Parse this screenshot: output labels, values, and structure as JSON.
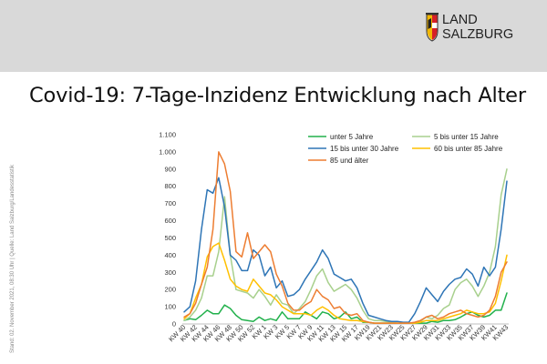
{
  "header": {
    "logo_line1": "LAND",
    "logo_line2": "SALZBURG",
    "band_color": "#d9d9d9"
  },
  "title": "Covid-19: 7-Tage-Inzidenz Entwicklung nach Alter",
  "side_note": "Stand: 02. November 2021, 08:30 Uhr | Quelle: Land Salzburg/Landesstatistik",
  "chart_data": {
    "type": "line",
    "title": "",
    "xlabel": "",
    "ylabel": "",
    "ylim": [
      0,
      1100
    ],
    "yticks": [
      0,
      100,
      200,
      300,
      400,
      500,
      600,
      700,
      800,
      900,
      1000,
      1100
    ],
    "ytick_labels": [
      "0",
      "100",
      "200",
      "300",
      "400",
      "500",
      "600",
      "700",
      "800",
      "900",
      "1.000",
      "1.100"
    ],
    "grid": false,
    "legend_position": "top-right",
    "x": [
      "KW 40",
      "KW 41",
      "KW 42",
      "KW 43",
      "KW 44",
      "KW 45",
      "KW 46",
      "KW 47",
      "KW 48",
      "KW 49",
      "KW 50",
      "KW 51",
      "KW 52",
      "KW 53",
      "KW 1",
      "KW 2",
      "KW 3",
      "KW 4",
      "KW 5",
      "KW 6",
      "KW 7",
      "KW 8",
      "KW 9",
      "KW 10",
      "KW 11",
      "KW 12",
      "KW 13",
      "KW 14",
      "KW 15",
      "KW 16",
      "KW 17",
      "KW 18",
      "KW19",
      "KW20",
      "KW21",
      "KW22",
      "KW23",
      "KW24",
      "KW25",
      "KW26",
      "KW27",
      "KW28",
      "KW29",
      "KW30",
      "KW31",
      "KW32",
      "KW33",
      "KW34",
      "KW35",
      "KW36",
      "KW37",
      "KW38",
      "KW39",
      "KW40",
      "KW41",
      "KW42",
      "KW43"
    ],
    "x_tick_labels": [
      "KW 40",
      "KW 42",
      "KW 44",
      "KW 46",
      "KW 48",
      "KW 50",
      "KW 52",
      "KW 1",
      "KW 3",
      "KW 5",
      "KW 7",
      "KW 9",
      "KW 11",
      "KW 13",
      "KW 15",
      "KW 17",
      "KW19",
      "KW21",
      "KW23",
      "KW25",
      "KW27",
      "KW29",
      "KW31",
      "KW33",
      "KW35",
      "KW37",
      "KW39",
      "KW41",
      "KW43"
    ],
    "series": [
      {
        "name": "unter 5 Jahre",
        "color": "#22b14c",
        "values": [
          20,
          30,
          25,
          50,
          80,
          60,
          60,
          110,
          90,
          50,
          25,
          20,
          15,
          40,
          20,
          30,
          20,
          70,
          30,
          30,
          30,
          70,
          50,
          30,
          70,
          60,
          30,
          40,
          70,
          30,
          40,
          10,
          10,
          5,
          5,
          5,
          5,
          5,
          5,
          5,
          5,
          5,
          5,
          15,
          10,
          20,
          20,
          25,
          40,
          60,
          70,
          50,
          40,
          50,
          80,
          80,
          180
        ]
      },
      {
        "name": "5 bis unter 15 Jahre",
        "color": "#a8d08d",
        "values": [
          20,
          40,
          80,
          150,
          280,
          280,
          420,
          740,
          400,
          200,
          190,
          180,
          150,
          200,
          160,
          110,
          170,
          120,
          110,
          60,
          90,
          130,
          200,
          280,
          320,
          240,
          190,
          210,
          230,
          200,
          150,
          80,
          30,
          20,
          20,
          15,
          10,
          5,
          5,
          5,
          5,
          15,
          40,
          30,
          50,
          90,
          110,
          200,
          240,
          260,
          220,
          160,
          220,
          300,
          450,
          750,
          900
        ]
      },
      {
        "name": "15 bis unter 30 Jahre",
        "color": "#2e75b6",
        "values": [
          70,
          100,
          250,
          550,
          780,
          760,
          850,
          680,
          400,
          370,
          310,
          310,
          430,
          400,
          280,
          330,
          210,
          250,
          160,
          170,
          200,
          260,
          310,
          360,
          430,
          380,
          290,
          270,
          250,
          260,
          210,
          120,
          50,
          40,
          30,
          20,
          15,
          15,
          10,
          10,
          60,
          130,
          210,
          170,
          130,
          190,
          230,
          260,
          270,
          320,
          290,
          220,
          330,
          280,
          330,
          550,
          830
        ]
      },
      {
        "name": "60 bis unter 85 Jahre",
        "color": "#ffc000",
        "values": [
          30,
          60,
          150,
          230,
          390,
          450,
          470,
          370,
          260,
          220,
          200,
          190,
          260,
          220,
          180,
          170,
          140,
          100,
          80,
          60,
          60,
          60,
          50,
          80,
          100,
          80,
          50,
          30,
          25,
          20,
          20,
          15,
          10,
          5,
          5,
          5,
          5,
          5,
          5,
          5,
          5,
          10,
          20,
          20,
          20,
          30,
          40,
          50,
          60,
          80,
          70,
          60,
          60,
          70,
          120,
          250,
          400
        ]
      },
      {
        "name": "85 und älter",
        "color": "#ed7d31",
        "values": [
          40,
          60,
          120,
          230,
          330,
          550,
          1000,
          930,
          770,
          420,
          390,
          530,
          380,
          420,
          460,
          420,
          290,
          220,
          120,
          80,
          80,
          110,
          130,
          200,
          160,
          140,
          90,
          100,
          60,
          50,
          60,
          20,
          10,
          5,
          5,
          5,
          5,
          5,
          5,
          5,
          10,
          20,
          40,
          50,
          30,
          40,
          60,
          70,
          80,
          60,
          50,
          40,
          50,
          80,
          160,
          300,
          360
        ]
      }
    ]
  }
}
